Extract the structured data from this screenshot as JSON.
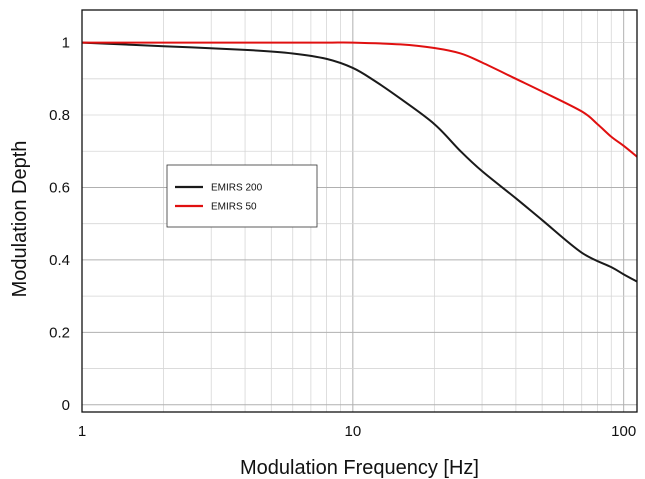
{
  "chart_data": {
    "type": "line",
    "xlabel": "Modulation Frequency [Hz]",
    "ylabel": "Modulation Depth",
    "x_scale": "log",
    "xlim": [
      1,
      112
    ],
    "ylim": [
      -0.02,
      1.09
    ],
    "grid": true,
    "legend_position": "center-left",
    "x_ticks": [
      1,
      10,
      100
    ],
    "x_tick_labels": [
      "1",
      "10",
      "100"
    ],
    "y_ticks": [
      0,
      0.2,
      0.4,
      0.6,
      0.8,
      1
    ],
    "y_tick_labels": [
      "0",
      "0.2",
      "0.4",
      "0.6",
      "0.8",
      "1"
    ],
    "series": [
      {
        "name": "EMIRS 200",
        "color": "#1a1a1a",
        "x": [
          1,
          2,
          4,
          6,
          8,
          10,
          12,
          15,
          20,
          25,
          30,
          40,
          50,
          70,
          90,
          100,
          112
        ],
        "y": [
          1.0,
          0.99,
          0.98,
          0.97,
          0.955,
          0.93,
          0.895,
          0.845,
          0.775,
          0.7,
          0.645,
          0.57,
          0.51,
          0.42,
          0.38,
          0.36,
          0.34
        ]
      },
      {
        "name": "EMIRS 50",
        "color": "#e01010",
        "x": [
          1,
          5,
          8,
          10,
          15,
          20,
          25,
          30,
          40,
          50,
          70,
          80,
          90,
          100,
          112
        ],
        "y": [
          1.0,
          1.0,
          1.0,
          1.0,
          0.995,
          0.985,
          0.97,
          0.945,
          0.9,
          0.865,
          0.81,
          0.775,
          0.74,
          0.715,
          0.685
        ]
      }
    ]
  }
}
